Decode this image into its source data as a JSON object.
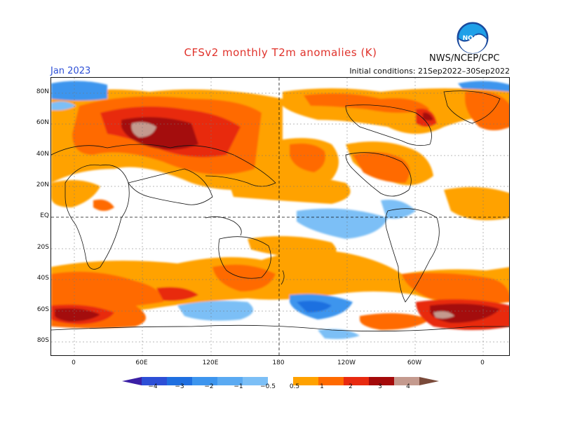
{
  "title": "CFSv2 monthly T2m anomalies (K)",
  "valid_month": "Jan 2023",
  "agency": "NWS/NCEP/CPC",
  "initial_conditions": "Initial conditions: 21Sep2022–30Sep2022",
  "logo": {
    "text": "NOAA",
    "icon": "noaa-logo"
  },
  "latitude_labels": [
    "80N",
    "60N",
    "40N",
    "20N",
    "EQ",
    "20S",
    "40S",
    "60S",
    "80S"
  ],
  "longitude_labels": [
    "0",
    "60E",
    "120E",
    "180",
    "120W",
    "60W",
    "0"
  ],
  "colorbar": {
    "tick_labels": [
      "−4",
      "−3",
      "−2",
      "−1",
      "−0.5",
      "0.5",
      "1",
      "2",
      "3",
      "4"
    ],
    "colors": [
      "#3b1fa5",
      "#2d4fd6",
      "#1f6fe0",
      "#3d95ee",
      "#7cbff6",
      "#ffffff",
      "#ffa200",
      "#ff6a00",
      "#e82a10",
      "#a40a0a",
      "#c49a8e",
      "#7a4a3a"
    ]
  },
  "colors": {
    "title": "#e0322b",
    "month": "#2d4fd6"
  }
}
